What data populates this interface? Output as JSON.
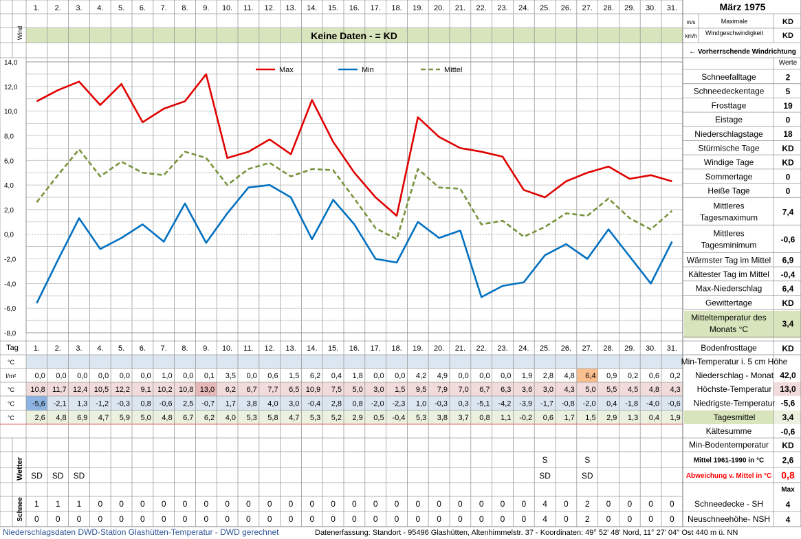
{
  "header": {
    "month_title": "März 1975",
    "wind_label": "Wind",
    "unit_ms": "m/s",
    "unit_kmh": "km/h",
    "max_wind_line1": "Maximale",
    "max_wind_line2": "Windgeschwindigkeit",
    "max_wind_value": "KD",
    "max_wind_value2": "KD",
    "no_data_banner": "Keine Daten -  = KD",
    "wind_direction_label": "← Vorherrschende Windrichtung",
    "werte_label": "Werte",
    "day_header_label": "Tag"
  },
  "days": [
    "1.",
    "2.",
    "3.",
    "4.",
    "5.",
    "6.",
    "7.",
    "8.",
    "9.",
    "10.",
    "11.",
    "12.",
    "13.",
    "14.",
    "15.",
    "16.",
    "17.",
    "18.",
    "19.",
    "20.",
    "21.",
    "22.",
    "23.",
    "24.",
    "25.",
    "26.",
    "27.",
    "28.",
    "29.",
    "30.",
    "31."
  ],
  "chart_data": {
    "type": "line",
    "x": [
      1,
      2,
      3,
      4,
      5,
      6,
      7,
      8,
      9,
      10,
      11,
      12,
      13,
      14,
      15,
      16,
      17,
      18,
      19,
      20,
      21,
      22,
      23,
      24,
      25,
      26,
      27,
      28,
      29,
      30,
      31
    ],
    "series": [
      {
        "name": "Max",
        "color": "#e00000",
        "style": "solid",
        "values": [
          10.8,
          11.7,
          12.4,
          10.5,
          12.2,
          9.1,
          10.2,
          10.8,
          13.0,
          6.2,
          6.7,
          7.7,
          6.5,
          10.9,
          7.5,
          5.0,
          3.0,
          1.5,
          9.5,
          7.9,
          7.0,
          6.7,
          6.3,
          3.6,
          3.0,
          4.3,
          5.0,
          5.5,
          4.5,
          4.8,
          4.3
        ]
      },
      {
        "name": "Min",
        "color": "#0070c0",
        "style": "solid",
        "values": [
          -5.6,
          -2.1,
          1.3,
          -1.2,
          -0.3,
          0.8,
          -0.6,
          2.5,
          -0.7,
          1.7,
          3.8,
          4.0,
          3.0,
          -0.4,
          2.8,
          0.8,
          -2.0,
          -2.3,
          1.0,
          -0.3,
          0.3,
          -5.1,
          -4.2,
          -3.9,
          -1.7,
          -0.8,
          -2.0,
          0.4,
          -1.8,
          -4.0,
          -0.6
        ]
      },
      {
        "name": "Mittel",
        "color": "#77933c",
        "style": "dashed",
        "values": [
          2.6,
          4.8,
          6.9,
          4.7,
          5.9,
          5.0,
          4.8,
          6.7,
          6.2,
          4.0,
          5.3,
          5.8,
          4.7,
          5.3,
          5.2,
          2.9,
          0.5,
          -0.4,
          5.3,
          3.8,
          3.7,
          0.8,
          1.1,
          -0.2,
          0.6,
          1.7,
          1.5,
          2.9,
          1.3,
          0.4,
          1.9
        ]
      }
    ],
    "ylim": [
      -8,
      14
    ],
    "yticks": [
      "14,0",
      "12,0",
      "10,0",
      "8,0",
      "6,0",
      "4,0",
      "2,0",
      "0,0",
      "-2,0",
      "-4,0",
      "-6,0",
      "-8,0"
    ],
    "grid": true,
    "legend": "top"
  },
  "table": {
    "rows": [
      {
        "unit": "°C",
        "label": "Min-Temperatur i. 5 cm Höhe",
        "total": "",
        "bg": "#dce6f1",
        "values": [
          "",
          "",
          "",
          "",
          "",
          "",
          "",
          "",
          "",
          "",
          "",
          "",
          "",
          "",
          "",
          "",
          "",
          "",
          "",
          "",
          "",
          "",
          "",
          "",
          "",
          "",
          "",
          "",
          "",
          "",
          ""
        ]
      },
      {
        "unit": "l/m²",
        "label": "Niederschlag - Monat",
        "total": "42,0",
        "bg": "#ffffff",
        "values": [
          "0,0",
          "0,0",
          "0,0",
          "0,0",
          "0,0",
          "0,0",
          "1,0",
          "0,0",
          "0,1",
          "3,5",
          "0,0",
          "0,6",
          "1,5",
          "6,2",
          "0,4",
          "1,8",
          "0,0",
          "0,0",
          "4,2",
          "4,9",
          "0,0",
          "0,0",
          "0,0",
          "1,9",
          "2,8",
          "4,8",
          "6,4",
          "0,9",
          "0,2",
          "0,6",
          "0,2"
        ]
      },
      {
        "unit": "°C",
        "label": "Höchste-Temperatur",
        "total": "13,0",
        "bg": "#f2dcdb",
        "values": [
          "10,8",
          "11,7",
          "12,4",
          "10,5",
          "12,2",
          "9,1",
          "10,2",
          "10,8",
          "13,0",
          "6,2",
          "6,7",
          "7,7",
          "6,5",
          "10,9",
          "7,5",
          "5,0",
          "3,0",
          "1,5",
          "9,5",
          "7,9",
          "7,0",
          "6,7",
          "6,3",
          "3,6",
          "3,0",
          "4,3",
          "5,0",
          "5,5",
          "4,5",
          "4,8",
          "4,3"
        ]
      },
      {
        "unit": "°C",
        "label": "Niedrigste-Temperatur",
        "total": "-5,6",
        "bg": "#dce6f1",
        "values": [
          "-5,6",
          "-2,1",
          "1,3",
          "-1,2",
          "-0,3",
          "0,8",
          "-0,6",
          "2,5",
          "-0,7",
          "1,7",
          "3,8",
          "4,0",
          "3,0",
          "-0,4",
          "2,8",
          "0,8",
          "-2,0",
          "-2,3",
          "1,0",
          "-0,3",
          "0,3",
          "-5,1",
          "-4,2",
          "-3,9",
          "-1,7",
          "-0,8",
          "-2,0",
          "0,4",
          "-1,8",
          "-4,0",
          "-0,6"
        ]
      },
      {
        "unit": "°C",
        "label": "Tagesmittel",
        "total": "3,4",
        "bg": "#ebf1de",
        "values": [
          "2,6",
          "4,8",
          "6,9",
          "4,7",
          "5,9",
          "5,0",
          "4,8",
          "6,7",
          "6,2",
          "4,0",
          "5,3",
          "5,8",
          "4,7",
          "5,3",
          "5,2",
          "2,9",
          "0,5",
          "-0,4",
          "5,3",
          "3,8",
          "3,7",
          "0,8",
          "1,1",
          "-0,2",
          "0,6",
          "1,7",
          "1,5",
          "2,9",
          "1,3",
          "0,4",
          "1,9"
        ]
      }
    ],
    "highlights": {
      "max_index": 8,
      "min_index": 0,
      "precip_max_index": 26
    }
  },
  "weather": {
    "label": "Wetter",
    "row1": [
      "",
      "",
      "",
      "",
      "",
      "",
      "",
      "",
      "",
      "",
      "",
      "",
      "",
      "",
      "",
      "",
      "",
      "",
      "",
      "",
      "",
      "",
      "",
      "",
      "S",
      "",
      "S",
      "",
      "",
      "",
      ""
    ],
    "row2": [
      "SD",
      "SD",
      "SD",
      "",
      "",
      "",
      "",
      "",
      "",
      "",
      "",
      "",
      "",
      "",
      "",
      "",
      "",
      "",
      "",
      "",
      "",
      "",
      "",
      "",
      "SD",
      "",
      "SD",
      "",
      "",
      "",
      ""
    ]
  },
  "snow": {
    "label": "Schnee",
    "sh": [
      "1",
      "1",
      "1",
      "0",
      "0",
      "0",
      "0",
      "0",
      "0",
      "0",
      "0",
      "0",
      "0",
      "0",
      "0",
      "0",
      "0",
      "0",
      "0",
      "0",
      "0",
      "0",
      "0",
      "0",
      "4",
      "0",
      "2",
      "0",
      "0",
      "0",
      "0"
    ],
    "nsh": [
      "0",
      "0",
      "0",
      "0",
      "0",
      "0",
      "0",
      "0",
      "0",
      "0",
      "0",
      "0",
      "0",
      "0",
      "0",
      "0",
      "0",
      "0",
      "0",
      "0",
      "0",
      "0",
      "0",
      "0",
      "4",
      "0",
      "2",
      "0",
      "0",
      "0",
      "0"
    ]
  },
  "stats": [
    {
      "label": "Schneefalltage",
      "value": "2"
    },
    {
      "label": "Schneedeckentage",
      "value": "5"
    },
    {
      "label": "Frosttage",
      "value": "19"
    },
    {
      "label": "Eistage",
      "value": "0"
    },
    {
      "label": "Niederschlagstage",
      "value": "18"
    },
    {
      "label": "Stürmische Tage",
      "value": "KD"
    },
    {
      "label": "Windige Tage",
      "value": "KD"
    },
    {
      "label": "Sommertage",
      "value": "0"
    },
    {
      "label": "Heiße Tage",
      "value": "0"
    },
    {
      "label": "Mittleres|Tagesmaximum",
      "value": "7,4"
    },
    {
      "label": "Mittleres|Tagesminimum",
      "value": "-0,6"
    },
    {
      "label": "Wärmster Tag im Mittel",
      "value": "6,9"
    },
    {
      "label": "Kältester Tag im Mittel",
      "value": "-0,4"
    },
    {
      "label": "Max-Niederschlag",
      "value": "6,4"
    },
    {
      "label": "Gewittertage",
      "value": "KD"
    },
    {
      "label": "Mitteltemperatur des|Monats °C",
      "value": "3,4"
    }
  ],
  "side_bottom": {
    "bodenfrost_label": "Bodenfrosttage",
    "bodenfrost_value": "KD",
    "kaeltesumme_label": "Kältesumme",
    "kaeltesumme_value": "-0,6",
    "minboden_label": "Min-Bodentemperatur",
    "minboden_value": "KD",
    "mittel_label": "Mittel 1961-1990 in °C",
    "mittel_value": "2,6",
    "abw_label": "Abweichung v. Mittel in °C",
    "abw_value": "0,8",
    "max_label": "Max",
    "sh_label": "Schneedecke -  SH",
    "sh_value": "4",
    "nsh_label": "Neuschneehöhe- NSH",
    "nsh_value": "4"
  },
  "footer": {
    "left": "Niederschlagsdaten DWD-Station Glashütten-Temperatur -  DWD gerechnet",
    "right": "Datenerfassung: Standort -  95496  Glashütten, Altenhimmelstr. 37 - Koordinaten:  49° 52' 48' Nord,   11° 27' 04'' Ost  440 m ü. NN"
  },
  "colors": {
    "max": "#e00000",
    "min": "#0070c0",
    "mean": "#77933c",
    "banner": "#d8e4bc",
    "red_text": "#ff0000"
  }
}
